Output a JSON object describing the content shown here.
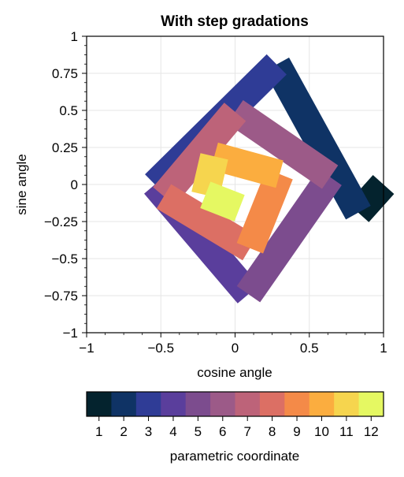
{
  "chart_data": {
    "type": "line",
    "title": "With step gradations",
    "xlabel": "cosine angle",
    "ylabel": "sine angle",
    "xlim": [
      -1,
      1
    ],
    "ylim": [
      -1,
      1
    ],
    "xticks": [
      "−1",
      "−0.5",
      "0",
      "0.5",
      "1"
    ],
    "yticks": [
      "1",
      "0.75",
      "0.5",
      "0.25",
      "0",
      "−0.25",
      "−0.5",
      "−0.75",
      "−1"
    ],
    "grid": true,
    "colormap": "thermal",
    "colorbar": {
      "label": "parametric coordinate",
      "ticks": [
        "1",
        "2",
        "3",
        "4",
        "5",
        "6",
        "7",
        "8",
        "9",
        "10",
        "11",
        "12"
      ],
      "colors": [
        "#04232e",
        "#0f3365",
        "#2f3c96",
        "#5a3e9c",
        "#7c4c8e",
        "#9c5a88",
        "#bd6379",
        "#dc6f64",
        "#f48a48",
        "#fbad3f",
        "#f6d54e",
        "#e5f862"
      ]
    },
    "series": [
      {
        "t": 1,
        "x": [
          1.0,
          0.83
        ],
        "y": [
          0.0,
          -0.19
        ]
      },
      {
        "t": 2,
        "x": [
          0.83,
          0.28
        ],
        "y": [
          -0.19,
          0.81
        ]
      },
      {
        "t": 3,
        "x": [
          0.28,
          -0.54
        ],
        "y": [
          0.81,
          0.0
        ]
      },
      {
        "t": 4,
        "x": [
          -0.54,
          0.09
        ],
        "y": [
          0.0,
          -0.74
        ]
      },
      {
        "t": 5,
        "x": [
          0.09,
          0.64
        ],
        "y": [
          -0.74,
          0.05
        ]
      },
      {
        "t": 6,
        "x": [
          0.64,
          -0.0
        ],
        "y": [
          0.05,
          0.49
        ]
      },
      {
        "t": 7,
        "x": [
          -0.0,
          -0.48
        ],
        "y": [
          0.49,
          -0.08
        ]
      },
      {
        "t": 8,
        "x": [
          -0.48,
          0.1
        ],
        "y": [
          -0.08,
          -0.43
        ]
      },
      {
        "t": 9,
        "x": [
          0.1,
          0.3
        ],
        "y": [
          -0.43,
          0.07
        ]
      },
      {
        "t": 10,
        "x": [
          0.3,
          -0.14
        ],
        "y": [
          0.07,
          0.19
        ]
      },
      {
        "t": 11,
        "x": [
          -0.14,
          -0.2
        ],
        "y": [
          0.19,
          -0.07
        ]
      },
      {
        "t": 12,
        "x": [
          -0.2,
          0.03
        ],
        "y": [
          -0.07,
          -0.16
        ]
      }
    ]
  }
}
